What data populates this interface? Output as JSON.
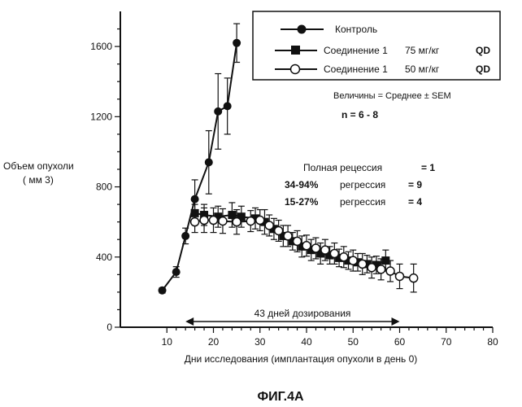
{
  "chart_data": {
    "type": "line",
    "title": "",
    "caption": "ФИГ.4А",
    "xlabel": "Дни исследования (имплантация опухоли в день 0)",
    "ylabel_line1": "Объем опухоли",
    "ylabel_line2": "( мм 3)",
    "xlim": [
      0,
      80
    ],
    "ylim": [
      0,
      1800
    ],
    "x_ticks": [
      10,
      20,
      30,
      40,
      50,
      60,
      70,
      80
    ],
    "y_ticks": [
      0,
      400,
      800,
      1200,
      1600
    ],
    "legend": {
      "position": "top-right",
      "rows": [
        {
          "name": "Контроль",
          "dose": "",
          "schedule": ""
        },
        {
          "name": "Соединение 1",
          "dose": "75 мг/кг",
          "schedule": "QD"
        },
        {
          "name": "Соединение 1",
          "dose": "50 мг/кг",
          "schedule": "QD"
        }
      ]
    },
    "series": [
      {
        "name": "Контроль",
        "marker": "filled-circle",
        "x": [
          9,
          12,
          14,
          16,
          19,
          21,
          23,
          25
        ],
        "y": [
          210,
          315,
          520,
          730,
          940,
          1230,
          1260,
          1620
        ],
        "err": [
          15,
          30,
          45,
          110,
          180,
          215,
          160,
          110
        ]
      },
      {
        "name": "Соединение 1 75 мг/кг QD",
        "marker": "filled-square",
        "x": [
          16,
          18,
          21,
          24,
          26,
          29,
          31,
          33,
          35,
          37,
          39,
          41,
          43,
          45,
          47,
          49,
          51,
          53,
          55,
          57
        ],
        "y": [
          650,
          640,
          630,
          640,
          630,
          620,
          600,
          560,
          520,
          490,
          460,
          440,
          420,
          410,
          395,
          380,
          370,
          360,
          355,
          380
        ],
        "err": [
          50,
          60,
          60,
          70,
          60,
          60,
          70,
          60,
          60,
          50,
          60,
          60,
          60,
          50,
          50,
          50,
          50,
          50,
          50,
          60
        ]
      },
      {
        "name": "Соединение 1 50 мг/кг QD",
        "marker": "open-circle",
        "x": [
          16,
          18,
          20,
          22,
          25,
          28,
          30,
          32,
          34,
          36,
          38,
          40,
          42,
          44,
          46,
          48,
          50,
          52,
          54,
          56,
          58,
          60,
          63
        ],
        "y": [
          600,
          610,
          610,
          605,
          600,
          605,
          610,
          580,
          550,
          520,
          490,
          465,
          450,
          440,
          420,
          400,
          380,
          360,
          340,
          330,
          320,
          290,
          280
        ],
        "err": [
          60,
          70,
          70,
          70,
          70,
          60,
          60,
          60,
          60,
          60,
          60,
          60,
          60,
          60,
          60,
          60,
          60,
          60,
          60,
          60,
          60,
          70,
          80
        ]
      }
    ],
    "annotations": {
      "values_label": "Величины = Среднее ± SEM",
      "n_label": "n = 6 - 8",
      "regression_rows": [
        {
          "range": "",
          "text": "Полная рецессия",
          "count": "= 1"
        },
        {
          "range": "34-94%",
          "text": "регрессия",
          "count": "= 9"
        },
        {
          "range": "15-27%",
          "text": "регрессия",
          "count": "= 4"
        }
      ],
      "dosing_label": "43 дней дозирования",
      "dosing_range": [
        14,
        60
      ]
    }
  }
}
